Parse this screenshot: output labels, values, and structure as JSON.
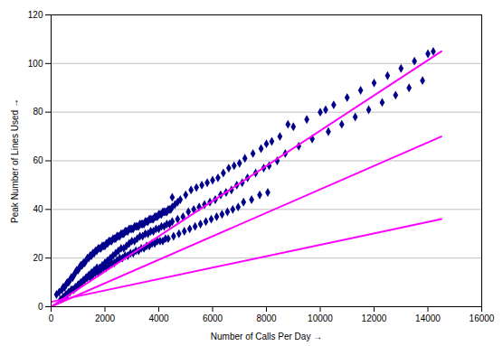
{
  "chart_data": {
    "type": "scatter",
    "xlabel": "Number of Calls Per Day",
    "ylabel": "Peak Number of Lines Used",
    "xlim": [
      0,
      16000
    ],
    "ylim": [
      0,
      120
    ],
    "xticks": [
      0,
      2000,
      4000,
      6000,
      8000,
      10000,
      12000,
      14000,
      16000
    ],
    "yticks": [
      0,
      20,
      40,
      60,
      80,
      100,
      120
    ],
    "grid": "y",
    "series": [
      {
        "type": "scatter",
        "color": "#00008B",
        "marker": "diamond",
        "x": [
          200,
          300,
          400,
          450,
          500,
          550,
          600,
          650,
          700,
          750,
          800,
          850,
          900,
          950,
          1000,
          1050,
          1100,
          1150,
          1200,
          1250,
          1300,
          1350,
          1400,
          1450,
          1500,
          1550,
          1600,
          1650,
          1700,
          1750,
          1800,
          1850,
          1900,
          1950,
          2000,
          2050,
          2100,
          2150,
          2200,
          2250,
          2300,
          2350,
          2400,
          2450,
          2500,
          2550,
          2600,
          2650,
          2700,
          2750,
          2800,
          2850,
          2900,
          2950,
          3000,
          3050,
          3100,
          3150,
          3200,
          3250,
          3300,
          3350,
          3400,
          3450,
          3500,
          3550,
          3600,
          3650,
          3700,
          3750,
          3800,
          3850,
          3900,
          3950,
          4000,
          4050,
          4100,
          4150,
          4200,
          4250,
          4300,
          4350,
          4400,
          4450,
          4500,
          4600,
          4700,
          4800,
          5000,
          5200,
          5400,
          5600,
          5800,
          6000,
          6200,
          6400,
          6600,
          6800,
          7000,
          7200,
          7500,
          7800,
          8000,
          8200,
          8500,
          9000,
          9500,
          10000,
          10200,
          10500,
          11000,
          11500,
          12000,
          12500,
          13000,
          13500,
          14000,
          14200,
          500,
          600,
          700,
          800,
          900,
          1000,
          1100,
          1200,
          1300,
          1400,
          1500,
          1600,
          1700,
          1800,
          1900,
          2000,
          2100,
          2200,
          2300,
          2400,
          2500,
          2600,
          2700,
          2800,
          2900,
          3000,
          3100,
          3200,
          3300,
          3400,
          3500,
          3600,
          3700,
          3800,
          3900,
          4000,
          4100,
          4200,
          4300,
          4400,
          4500,
          4700,
          4900,
          5100,
          5300,
          5500,
          5700,
          5900,
          6100,
          6300,
          6500,
          6700,
          6900,
          7100,
          7300,
          7600,
          7900,
          8100,
          8400,
          8700,
          9200,
          9700,
          10300,
          10800,
          11300,
          11800,
          12300,
          12800,
          13300,
          13800,
          350,
          450,
          550,
          650,
          750,
          850,
          950,
          1050,
          1150,
          1250,
          1350,
          1450,
          1550,
          1650,
          1750,
          1850,
          1950,
          2050,
          2150,
          2250,
          2350,
          2450,
          2550,
          2650,
          2750,
          2850,
          2950,
          3050,
          3150,
          3250,
          3350,
          3450,
          3550,
          3650,
          3750,
          3850,
          3950,
          4050,
          4150,
          4250,
          4350,
          4550,
          4750,
          4950,
          5150,
          5350,
          5550,
          5750,
          5950,
          6150,
          6350,
          6550,
          6750,
          6950,
          7150,
          7450,
          7750,
          8050,
          4500,
          8800
        ],
        "values": [
          5,
          6,
          7,
          8,
          8,
          9,
          10,
          10,
          11,
          12,
          12,
          13,
          14,
          15,
          15,
          16,
          17,
          17,
          18,
          18,
          19,
          20,
          20,
          21,
          21,
          22,
          22,
          23,
          23,
          24,
          24,
          24,
          25,
          25,
          25,
          26,
          26,
          27,
          27,
          27,
          28,
          28,
          28,
          29,
          29,
          29,
          30,
          30,
          30,
          31,
          31,
          31,
          32,
          32,
          32,
          32,
          33,
          33,
          33,
          33,
          34,
          34,
          34,
          34,
          35,
          35,
          35,
          36,
          36,
          36,
          36,
          37,
          37,
          37,
          38,
          38,
          38,
          39,
          39,
          39,
          39,
          40,
          40,
          40,
          41,
          42,
          43,
          44,
          46,
          48,
          49,
          50,
          51,
          52,
          53,
          55,
          57,
          58,
          59,
          61,
          63,
          65,
          67,
          68,
          70,
          74,
          77,
          80,
          81,
          83,
          86,
          89,
          92,
          95,
          98,
          101,
          104,
          105,
          4,
          5,
          6,
          7,
          8,
          9,
          10,
          11,
          12,
          13,
          14,
          15,
          16,
          16,
          17,
          18,
          19,
          20,
          21,
          22,
          23,
          24,
          24,
          25,
          26,
          27,
          27,
          28,
          29,
          29,
          30,
          30,
          31,
          31,
          32,
          32,
          33,
          33,
          34,
          34,
          35,
          36,
          37,
          39,
          40,
          41,
          42,
          43,
          44,
          46,
          47,
          48,
          50,
          51,
          53,
          55,
          57,
          58,
          60,
          63,
          66,
          69,
          72,
          75,
          78,
          81,
          84,
          87,
          90,
          93,
          3,
          4,
          5,
          6,
          7,
          7,
          8,
          9,
          10,
          11,
          12,
          12,
          13,
          14,
          14,
          15,
          16,
          16,
          17,
          18,
          18,
          19,
          20,
          20,
          21,
          21,
          22,
          22,
          23,
          23,
          24,
          24,
          25,
          25,
          26,
          26,
          27,
          27,
          27,
          28,
          28,
          29,
          30,
          31,
          32,
          33,
          34,
          35,
          36,
          37,
          38,
          39,
          40,
          41,
          43,
          44,
          46,
          47,
          45,
          75
        ]
      },
      {
        "type": "line",
        "color": "#FF00FF",
        "x": [
          0,
          14500
        ],
        "values": [
          0,
          105
        ]
      },
      {
        "type": "line",
        "color": "#FF00FF",
        "x": [
          0,
          14500
        ],
        "values": [
          0,
          70
        ]
      },
      {
        "type": "line",
        "color": "#FF00FF",
        "x": [
          0,
          14500
        ],
        "values": [
          2,
          36
        ]
      }
    ]
  }
}
